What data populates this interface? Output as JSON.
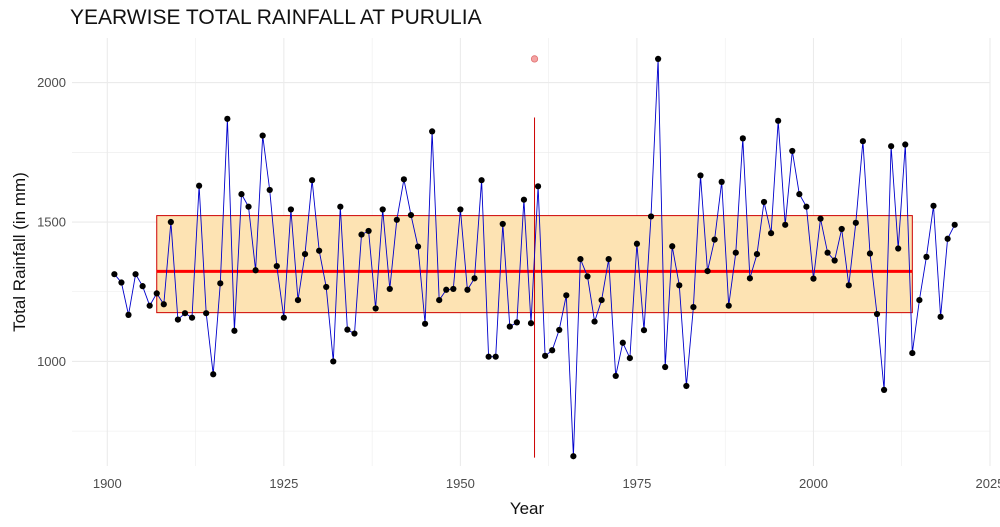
{
  "chart_data": {
    "type": "line",
    "title": "YEARWISE TOTAL RAINFALL AT PURULIA",
    "xlabel": "Year",
    "ylabel": "Total Rainfall (in mm)",
    "xlim": [
      1895,
      2025
    ],
    "ylim": [
      625,
      2160
    ],
    "x_ticks": [
      1900,
      1925,
      1950,
      1975,
      2000,
      2025
    ],
    "y_ticks": [
      1000,
      1500,
      2000
    ],
    "grid": true,
    "colors": {
      "line": "#0000cc",
      "points": "#000000",
      "mean_line": "#ff0000",
      "band_fill": "#fde3b3",
      "band_stroke": "#cc0000",
      "vline": "#cc0000",
      "highlight_point": "#f4a3a3",
      "grid": "#ebebeb"
    },
    "series": [
      {
        "x": [
          1901,
          1902,
          1903,
          1904,
          1905,
          1906,
          1907,
          1908,
          1909,
          1910,
          1911,
          1912,
          1913,
          1914,
          1915,
          1916,
          1917,
          1918,
          1919,
          1920,
          1921,
          1922,
          1923,
          1924,
          1925,
          1926,
          1927,
          1928,
          1929,
          1930,
          1931,
          1932,
          1933,
          1934,
          1935,
          1936,
          1937,
          1938,
          1939,
          1940,
          1941,
          1942,
          1943,
          1944,
          1945,
          1946,
          1947,
          1948,
          1949,
          1950,
          1951,
          1952,
          1953,
          1954,
          1955,
          1956,
          1957,
          1958,
          1959,
          1960,
          1961,
          1962,
          1963,
          1964,
          1965,
          1966,
          1967,
          1968,
          1969,
          1970,
          1971,
          1972,
          1973,
          1974,
          1975,
          1976,
          1977,
          1978,
          1979,
          1980,
          1981,
          1982,
          1983,
          1984,
          1985,
          1986,
          1987,
          1988,
          1989,
          1990,
          1991,
          1992,
          1993,
          1994,
          1995,
          1996,
          1997,
          1998,
          1999,
          2000,
          2001,
          2002,
          2003,
          2004,
          2005,
          2006,
          2007,
          2008,
          2009,
          2010,
          2011,
          2012,
          2013,
          2014,
          2015,
          2016,
          2017,
          2018,
          2019,
          2020
        ],
        "y": [
          1313,
          1283,
          1167,
          1313,
          1270,
          1200,
          1244,
          1205,
          1500,
          1150,
          1173,
          1157,
          1630,
          1173,
          954,
          1280,
          1870,
          1110,
          1600,
          1555,
          1327,
          1810,
          1615,
          1342,
          1157,
          1545,
          1220,
          1385,
          1650,
          1397,
          1267,
          1000,
          1555,
          1114,
          1100,
          1455,
          1468,
          1190,
          1545,
          1260,
          1508,
          1653,
          1525,
          1412,
          1135,
          1825,
          1220,
          1257,
          1260,
          1545,
          1257,
          1298,
          1650,
          1017,
          1017,
          1493,
          1125,
          1140,
          1580,
          1137,
          1628,
          1020,
          1040,
          1113,
          1237,
          660,
          1367,
          1305,
          1143,
          1220,
          1367,
          948,
          1067,
          1012,
          1422,
          1112,
          1520,
          2085,
          980,
          1413,
          1273,
          912,
          1195,
          1667,
          1324,
          1437,
          1644,
          1200,
          1390,
          1800,
          1298,
          1385,
          1572,
          1460,
          1863,
          1490,
          1755,
          1600,
          1555,
          1297,
          1512,
          1390,
          1362,
          1475,
          1273,
          1497,
          1790,
          1387,
          1170,
          898,
          1772,
          1405,
          1778,
          1030,
          1220,
          1375,
          1558,
          1160,
          1440,
          1490
        ]
      }
    ],
    "mean_line": {
      "x_start": 1907,
      "x_end": 2014,
      "y": 1323
    },
    "band": {
      "x_start": 1907,
      "x_end": 2014,
      "y_low": 1175,
      "y_high": 1523
    },
    "vertical_line": {
      "x": 1960.5,
      "y_low": 655,
      "y_high": 1875
    },
    "highlight_point": {
      "x": 1960.5,
      "y": 2085
    }
  }
}
